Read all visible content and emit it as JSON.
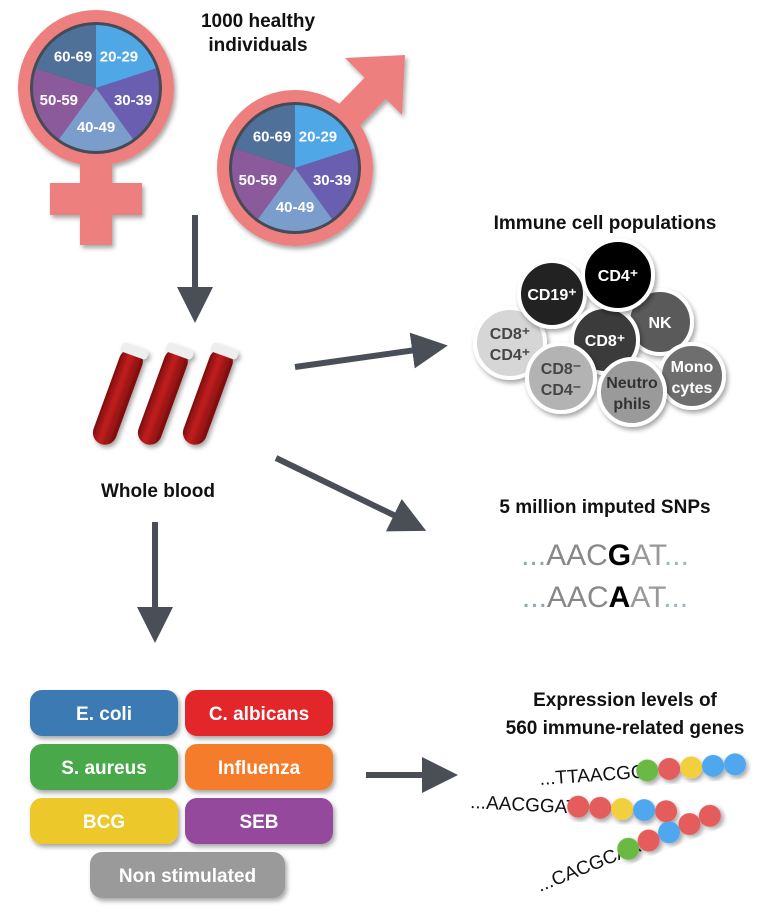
{
  "title": [
    "1000 healthy",
    "individuals"
  ],
  "age_groups": [
    {
      "label": "20-29",
      "color": "#4fa7e6"
    },
    {
      "label": "30-39",
      "color": "#6a5eb0"
    },
    {
      "label": "40-49",
      "color": "#7b9dcc"
    },
    {
      "label": "50-59",
      "color": "#8a5a9b"
    },
    {
      "label": "60-69",
      "color": "#4f7099"
    }
  ],
  "symbol_color": "#ee7f7f",
  "whole_blood": "Whole blood",
  "immune": {
    "title": "Immune cell populations",
    "cells": [
      {
        "lines": [
          "CD8⁺",
          "CD4⁺"
        ],
        "fill": "#d6d6d6",
        "text": "#444"
      },
      {
        "lines": [
          "CD19⁺"
        ],
        "fill": "#222222",
        "text": "#fff"
      },
      {
        "lines": [
          "NK"
        ],
        "fill": "#5a5a5a",
        "text": "#fff"
      },
      {
        "lines": [
          "CD8⁺"
        ],
        "fill": "#3a3a3a",
        "text": "#fff"
      },
      {
        "lines": [
          "CD4⁺"
        ],
        "fill": "#050505",
        "text": "#fff"
      },
      {
        "lines": [
          "CD8⁻",
          "CD4⁻"
        ],
        "fill": "#b3b3b3",
        "text": "#444"
      },
      {
        "lines": [
          "Mono",
          "cytes"
        ],
        "fill": "#6e6e6e",
        "text": "#fff"
      },
      {
        "lines": [
          "Neutro",
          "phils"
        ],
        "fill": "#9a9a9a",
        "text": "#333"
      }
    ]
  },
  "snps": {
    "title": "5 million imputed SNPs",
    "rows": [
      {
        "prefix": "...",
        "left": "AAC",
        "allele": "G",
        "right": "AT",
        "suffix": "..."
      },
      {
        "prefix": "...",
        "left": "AAC",
        "allele": "A",
        "right": "AT",
        "suffix": "..."
      }
    ]
  },
  "stimuli": [
    {
      "label": "E. coli",
      "color": "#3a7ab3"
    },
    {
      "label": "C. albicans",
      "color": "#e3262b"
    },
    {
      "label": "S. aureus",
      "color": "#4aa84a"
    },
    {
      "label": "Influenza",
      "color": "#f47c2a"
    },
    {
      "label": "BCG",
      "color": "#ecc82c"
    },
    {
      "label": "SEB",
      "color": "#94489c"
    },
    {
      "label": "Non stimulated",
      "color": "#9a9a9a"
    }
  ],
  "expression": {
    "title": [
      "Expression levels of",
      "560 immune-related genes"
    ],
    "rows": [
      {
        "seq": "...TTAACGG",
        "beads": [
          "#6bb944",
          "#e55b5b",
          "#f2cf3c",
          "#4fa7f0",
          "#4fa7f0"
        ]
      },
      {
        "seq": "...AACGGAT",
        "beads": [
          "#e55b5b",
          "#e55b5b",
          "#f2cf3c",
          "#4fa7f0",
          "#e55b5b"
        ]
      },
      {
        "seq": "...CACGCAA",
        "beads": [
          "#6bb944",
          "#e55b5b",
          "#4fa7f0",
          "#e55b5b",
          "#e55b5b"
        ]
      }
    ]
  },
  "arrow_color": "#4a4f57"
}
